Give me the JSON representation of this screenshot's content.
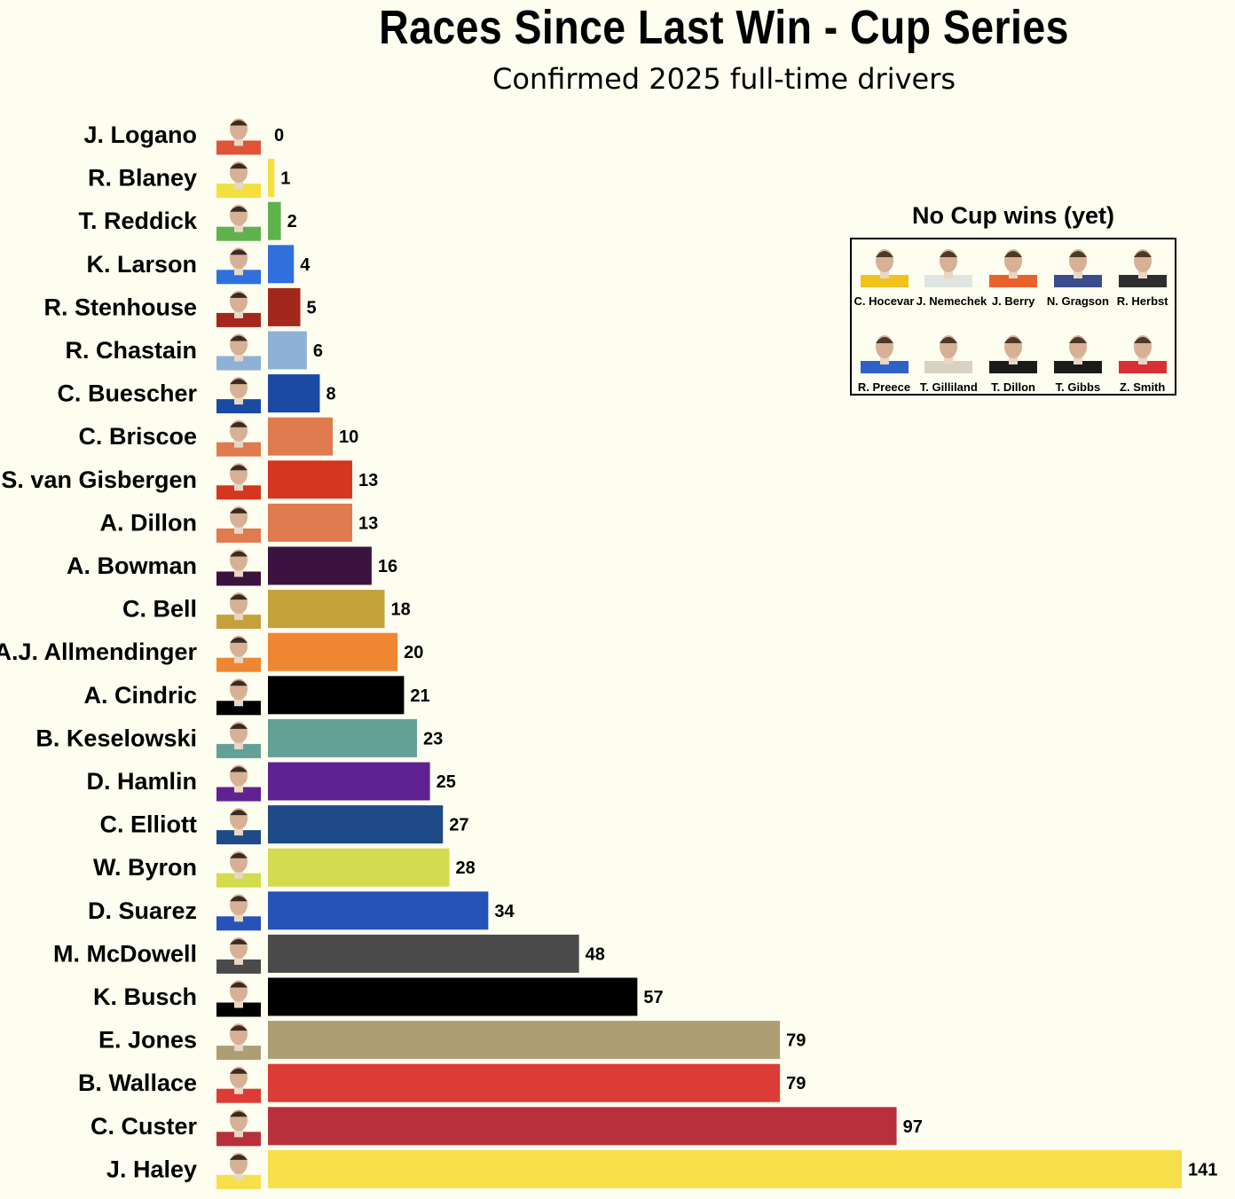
{
  "title": "Races Since Last Win - Cup Series",
  "subtitle": "Confirmed 2025 full-time drivers",
  "chart_data": {
    "type": "bar",
    "orientation": "horizontal",
    "categories": [
      "J. Logano",
      "R. Blaney",
      "T. Reddick",
      "K. Larson",
      "R. Stenhouse",
      "R. Chastain",
      "C. Buescher",
      "C. Briscoe",
      "S. van Gisbergen",
      "A. Dillon",
      "A. Bowman",
      "C. Bell",
      "A.J. Allmendinger",
      "A. Cindric",
      "B. Keselowski",
      "D. Hamlin",
      "C. Elliott",
      "W. Byron",
      "D. Suarez",
      "M. McDowell",
      "K. Busch",
      "E. Jones",
      "B. Wallace",
      "C. Custer",
      "J. Haley"
    ],
    "values": [
      0,
      1,
      2,
      4,
      5,
      6,
      8,
      10,
      13,
      13,
      16,
      18,
      20,
      21,
      23,
      25,
      27,
      28,
      34,
      48,
      57,
      79,
      79,
      97,
      141
    ],
    "value_labels": [
      "0",
      "1",
      "2",
      "4",
      "5",
      "6",
      "8",
      "10",
      "13",
      "13",
      "16",
      "18",
      "20",
      "21",
      "23",
      "25",
      "27",
      "28",
      "34",
      "48",
      "57",
      "79",
      "79",
      "97",
      "141"
    ],
    "colors": [
      "#e0543a",
      "#f1e03f",
      "#5fb24e",
      "#2f70dc",
      "#a4271d",
      "#8eb1d6",
      "#1a4aa3",
      "#e07a4f",
      "#d4361f",
      "#e07a4f",
      "#3c123f",
      "#c6a03a",
      "#ef8732",
      "#000000",
      "#63a198",
      "#5f2293",
      "#1f4a88",
      "#d3dc4f",
      "#2553b8",
      "#4a4a4a",
      "#000000",
      "#ad9e74",
      "#db3c35",
      "#b8303b",
      "#f7e04b"
    ],
    "xlim": [
      0,
      141
    ],
    "grid": false,
    "legend": "none"
  },
  "no_wins": {
    "title": "No Cup wins (yet)",
    "drivers": [
      "C. Hocevar",
      "J. Nemechek",
      "J. Berry",
      "N. Gragson",
      "R. Herbst",
      "R. Preece",
      "T. Gilliland",
      "T. Dillon",
      "T. Gibbs",
      "Z. Smith"
    ],
    "suit_colors": [
      "#f1c21b",
      "#dfe6e2",
      "#e8632c",
      "#3a4c8c",
      "#2e2e2e",
      "#2e62c9",
      "#d8d2c3",
      "#1b1b1b",
      "#1b1b1b",
      "#d92f35"
    ]
  }
}
